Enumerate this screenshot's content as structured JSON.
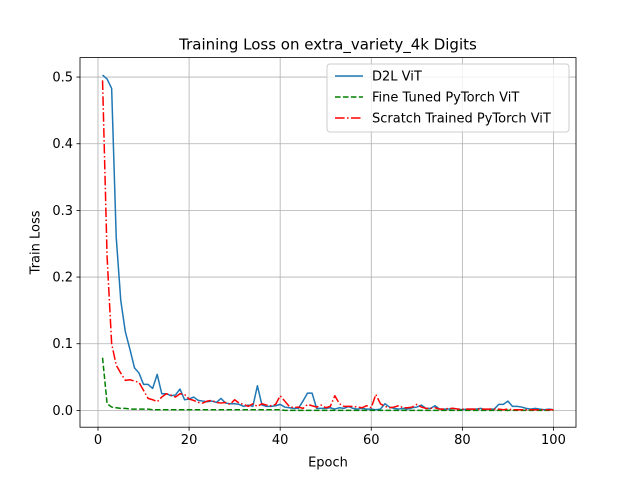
{
  "chart_data": {
    "type": "line",
    "title": "Training Loss on extra_variety_4k Digits",
    "xlabel": "Epoch",
    "ylabel": "Train Loss",
    "xlim": [
      -3.95,
      104.95
    ],
    "ylim": [
      -0.0252,
      0.5292
    ],
    "xticks": [
      0,
      20,
      40,
      60,
      80,
      100
    ],
    "yticks": [
      0.0,
      0.1,
      0.2,
      0.3,
      0.4,
      0.5
    ],
    "xtick_labels": [
      "0",
      "20",
      "40",
      "60",
      "80",
      "100"
    ],
    "ytick_labels": [
      "0.0",
      "0.1",
      "0.2",
      "0.3",
      "0.4",
      "0.5"
    ],
    "grid": true,
    "legend_position": "top-right",
    "series": [
      {
        "name": "D2L ViT",
        "color": "#1f77b4",
        "style": "solid",
        "values": [
          0.503,
          0.497,
          0.483,
          0.26,
          0.165,
          0.118,
          0.092,
          0.064,
          0.056,
          0.039,
          0.039,
          0.033,
          0.054,
          0.025,
          0.025,
          0.022,
          0.023,
          0.032,
          0.016,
          0.017,
          0.02,
          0.015,
          0.014,
          0.013,
          0.014,
          0.012,
          0.018,
          0.011,
          0.01,
          0.01,
          0.009,
          0.006,
          0.008,
          0.006,
          0.037,
          0.008,
          0.006,
          0.006,
          0.007,
          0.009,
          0.005,
          0.004,
          0.003,
          0.003,
          0.014,
          0.026,
          0.026,
          0.003,
          0.003,
          0.003,
          0.004,
          0.002,
          0.004,
          0.003,
          0.006,
          0.003,
          0.002,
          0.003,
          0.002,
          0.002,
          0.001,
          0.002,
          0.01,
          0.005,
          0.003,
          0.002,
          0.003,
          0.002,
          0.004,
          0.005,
          0.008,
          0.003,
          0.003,
          0.007,
          0.002,
          0.002,
          0.002,
          0.003,
          0.002,
          0.001,
          0.002,
          0.002,
          0.002,
          0.003,
          0.001,
          0.002,
          0.002,
          0.009,
          0.009,
          0.014,
          0.006,
          0.006,
          0.005,
          0.003,
          0.002,
          0.003,
          0.002,
          0.001,
          0.002,
          0.001
        ]
      },
      {
        "name": "Fine Tuned PyTorch ViT",
        "color": "#008000",
        "style": "dashed",
        "values": [
          0.079,
          0.01,
          0.005,
          0.004,
          0.003,
          0.003,
          0.002,
          0.002,
          0.002,
          0.002,
          0.002,
          0.001,
          0.001,
          0.001,
          0.001,
          0.001,
          0.001,
          0.001,
          0.001,
          0.001,
          0.001,
          0.001,
          0.001,
          0.001,
          0.001,
          0.001,
          0.001,
          0.001,
          0.001,
          0.001,
          0.001,
          0.001,
          0.001,
          0.001,
          0.001,
          0.001,
          0.001,
          0.001,
          0.001,
          0.001,
          0.0,
          0.0,
          0.0,
          0.0,
          0.0,
          0.0,
          0.0,
          0.0,
          0.0,
          0.0,
          0.0,
          0.0,
          0.0,
          0.0,
          0.0,
          0.0,
          0.0,
          0.0,
          0.0,
          0.0,
          0.0,
          0.0,
          0.0,
          0.0,
          0.0,
          0.0,
          0.0,
          0.0,
          0.0,
          0.0,
          0.0,
          0.0,
          0.0,
          0.0,
          0.0,
          0.0,
          0.0,
          0.0,
          0.0,
          0.0,
          0.0,
          0.0,
          0.0,
          0.0,
          0.0,
          0.0,
          0.0,
          0.0,
          0.0,
          0.0,
          0.0,
          0.0,
          0.0,
          0.0,
          0.0,
          0.0,
          0.0,
          0.0,
          0.0,
          0.0
        ]
      },
      {
        "name": "Scratch Trained PyTorch ViT",
        "color": "#ff0000",
        "style": "dashdot",
        "values": [
          0.495,
          0.23,
          0.1,
          0.068,
          0.056,
          0.045,
          0.046,
          0.044,
          0.042,
          0.03,
          0.018,
          0.016,
          0.013,
          0.02,
          0.025,
          0.023,
          0.02,
          0.025,
          0.024,
          0.017,
          0.015,
          0.012,
          0.011,
          0.014,
          0.015,
          0.012,
          0.011,
          0.012,
          0.009,
          0.016,
          0.011,
          0.009,
          0.006,
          0.01,
          0.006,
          0.01,
          0.008,
          0.007,
          0.009,
          0.022,
          0.014,
          0.006,
          0.004,
          0.005,
          0.003,
          0.009,
          0.007,
          0.005,
          0.008,
          0.004,
          0.006,
          0.022,
          0.01,
          0.006,
          0.006,
          0.006,
          0.005,
          0.004,
          0.007,
          0.004,
          0.024,
          0.01,
          0.006,
          0.004,
          0.005,
          0.007,
          0.004,
          0.004,
          0.005,
          0.009,
          0.005,
          0.003,
          0.003,
          0.004,
          0.002,
          0.002,
          0.003,
          0.003,
          0.002,
          0.002,
          0.002,
          0.002,
          0.002,
          0.002,
          0.002,
          0.002,
          0.002,
          0.002,
          0.001,
          0.002,
          0.001,
          0.001,
          0.001,
          0.001,
          0.001,
          0.001,
          0.001,
          0.001,
          0.001,
          0.001
        ]
      }
    ]
  }
}
